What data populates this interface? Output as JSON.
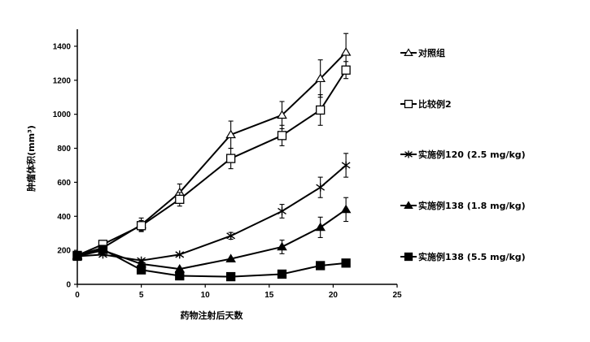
{
  "chart_data": {
    "type": "line",
    "xlabel": "药物注射后天数",
    "ylabel": "肿瘤体积(mm³)",
    "xlim": [
      0,
      25
    ],
    "ylim": [
      0,
      1500
    ],
    "xticks": [
      "0",
      "5",
      "10",
      "15",
      "20",
      "25"
    ],
    "yticks": [
      "0",
      "200",
      "400",
      "600",
      "800",
      "1000",
      "1200",
      "1400"
    ],
    "grid": false,
    "legend_position": "right",
    "series": [
      {
        "name": "对照组",
        "marker": "triangle-open",
        "x": [
          0,
          2,
          5,
          8,
          12,
          16,
          19,
          21
        ],
        "values": [
          170,
          215,
          350,
          540,
          880,
          995,
          1210,
          1365
        ],
        "errors": [
          0,
          0,
          40,
          50,
          80,
          80,
          110,
          110
        ]
      },
      {
        "name": "比较例2",
        "marker": "square-open",
        "x": [
          0,
          2,
          5,
          8,
          12,
          16,
          19,
          21
        ],
        "values": [
          170,
          235,
          345,
          500,
          740,
          875,
          1025,
          1260
        ],
        "errors": [
          0,
          20,
          30,
          40,
          60,
          60,
          90,
          50
        ]
      },
      {
        "name": "实施例120 (2.5 mg/kg)",
        "marker": "star",
        "x": [
          0,
          2,
          5,
          8,
          12,
          16,
          19,
          21
        ],
        "values": [
          165,
          175,
          140,
          175,
          285,
          430,
          570,
          700
        ],
        "errors": [
          0,
          0,
          0,
          0,
          20,
          40,
          60,
          70
        ]
      },
      {
        "name": "实施例138 (1.8 mg/kg)",
        "marker": "triangle-filled",
        "x": [
          0,
          2,
          5,
          8,
          12,
          16,
          19,
          21
        ],
        "values": [
          165,
          200,
          120,
          90,
          150,
          220,
          335,
          440
        ],
        "errors": [
          0,
          0,
          0,
          0,
          0,
          40,
          60,
          70
        ]
      },
      {
        "name": "实施例138 (5.5 mg/kg)",
        "marker": "square-filled",
        "x": [
          0,
          2,
          5,
          8,
          12,
          16,
          19,
          21
        ],
        "values": [
          165,
          205,
          85,
          50,
          45,
          60,
          110,
          125
        ],
        "errors": [
          0,
          0,
          0,
          0,
          0,
          0,
          0,
          0
        ]
      }
    ]
  }
}
